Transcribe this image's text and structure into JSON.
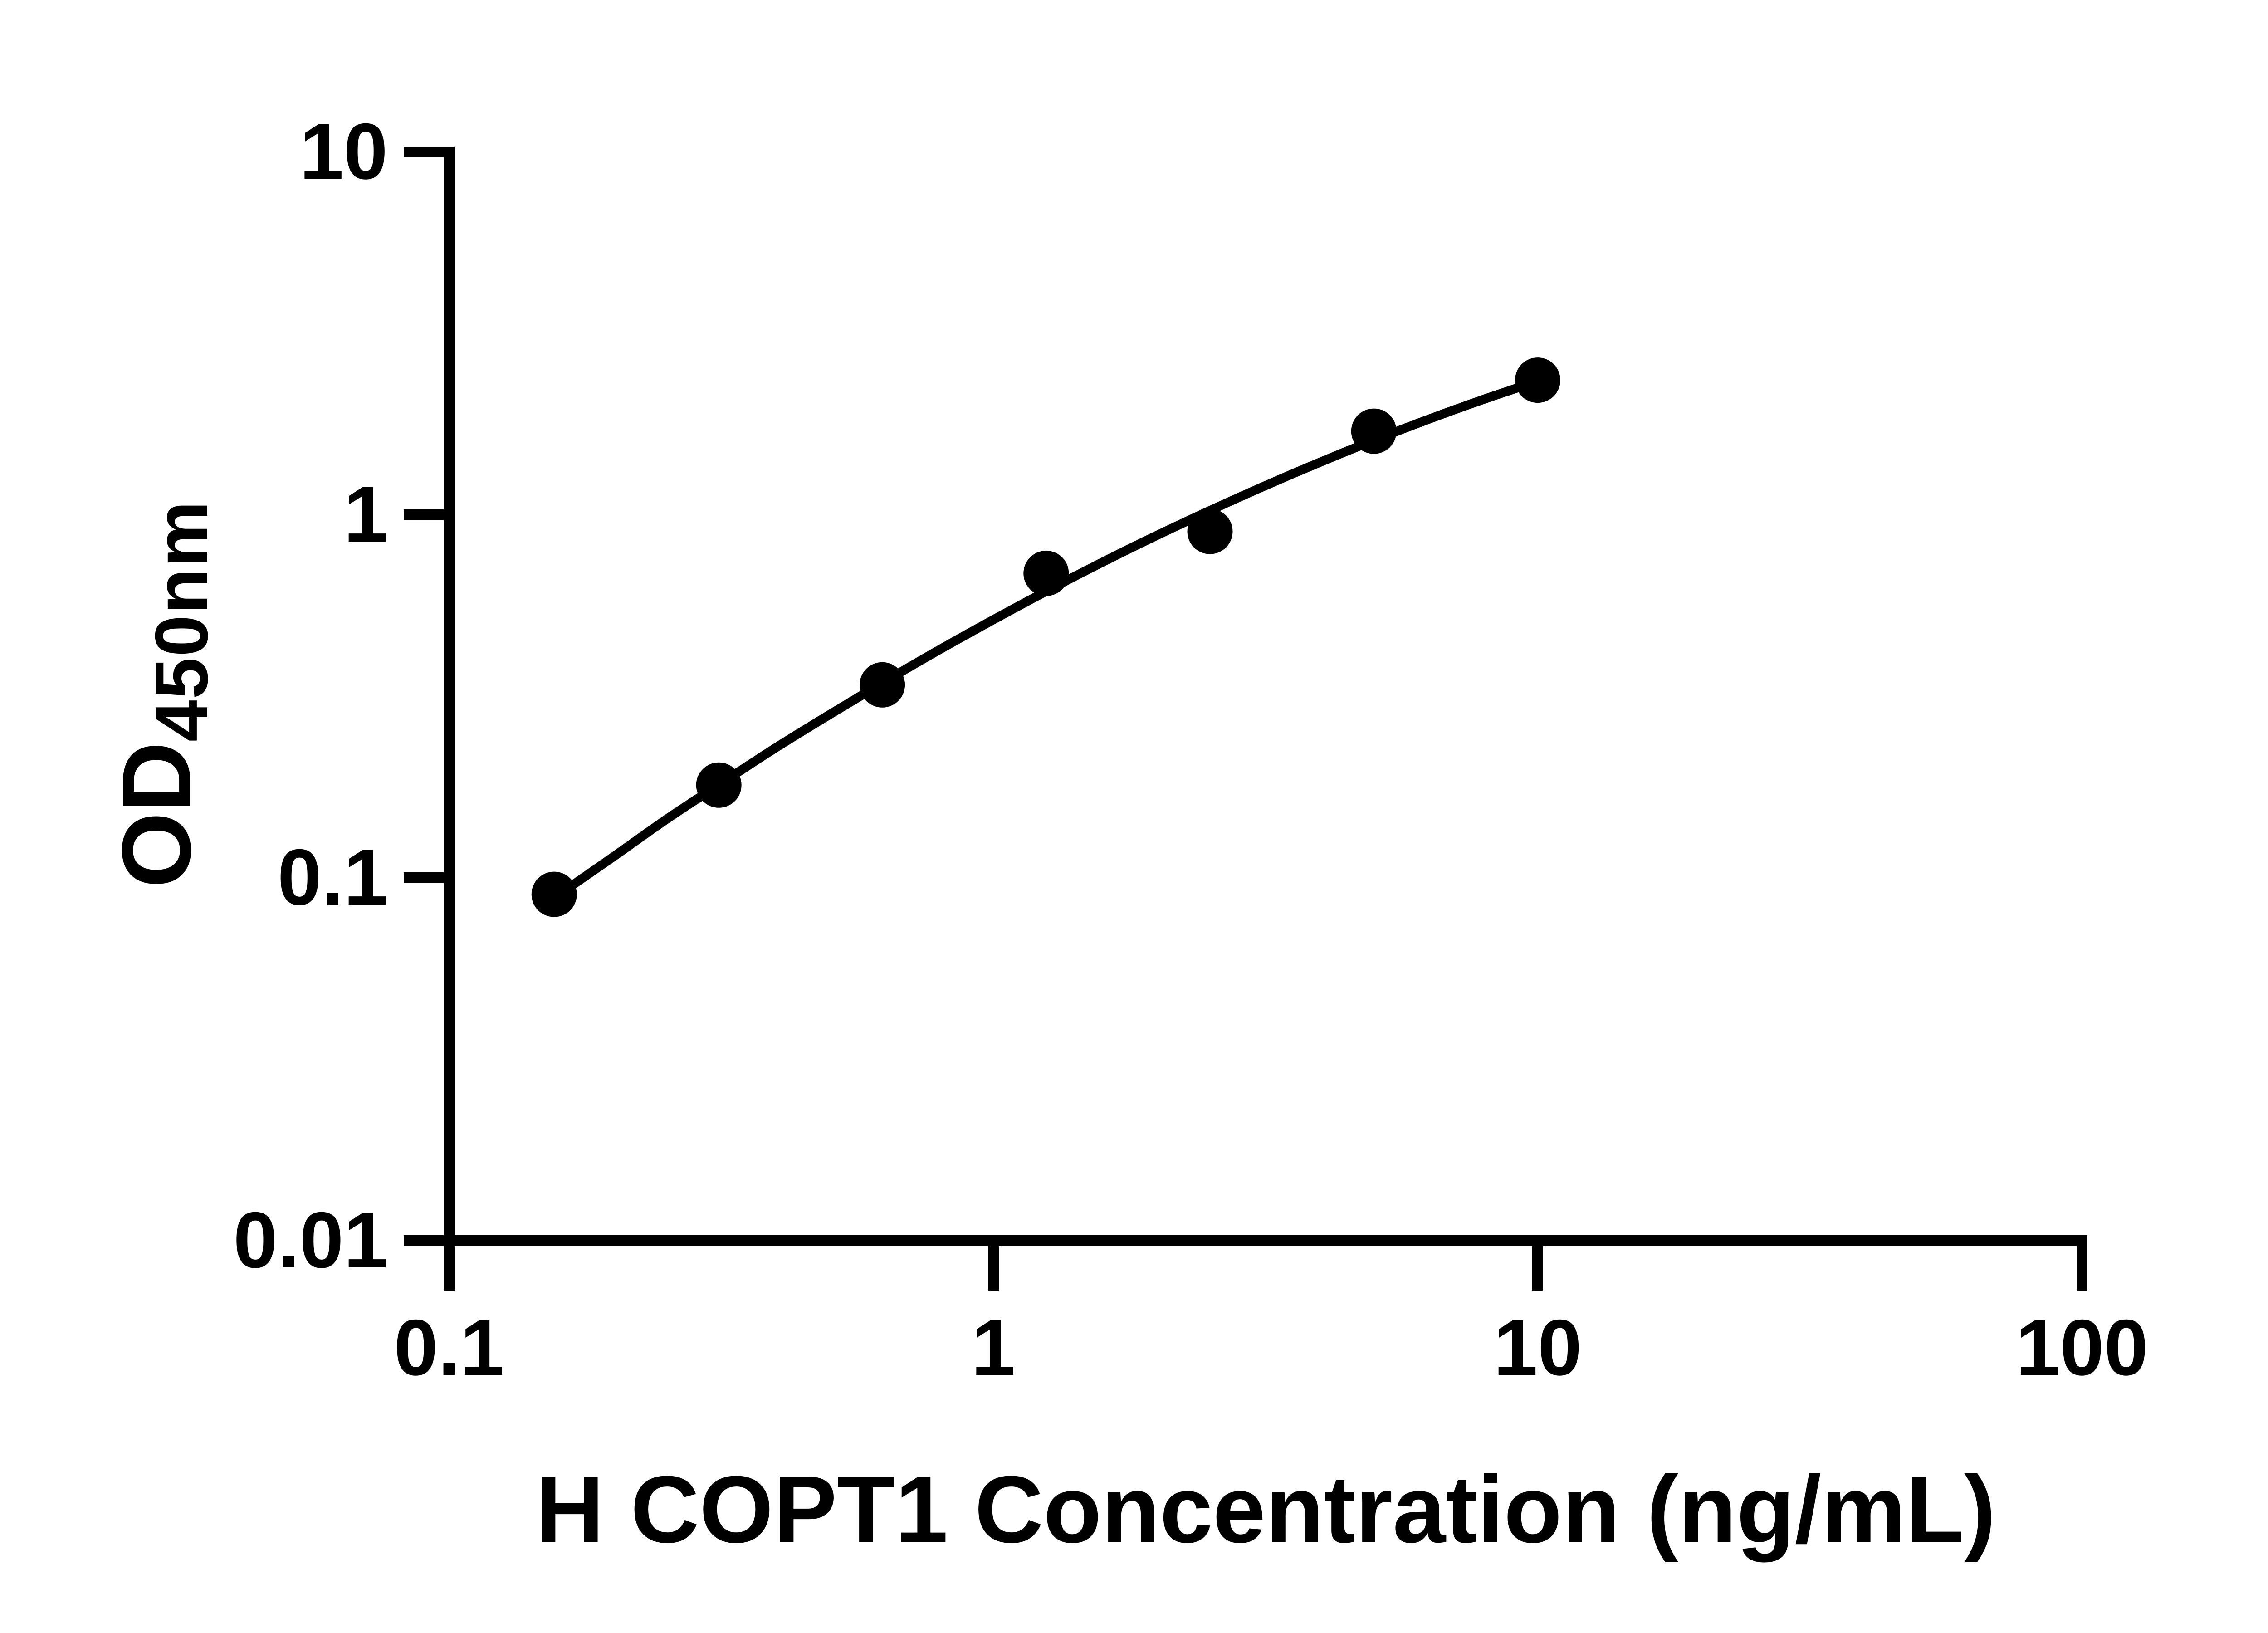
{
  "figure": {
    "background_color": "#ffffff",
    "foreground_color": "#000000"
  },
  "chart_data": {
    "type": "scatter",
    "title": "",
    "xlabel": "H COPT1 Concentration (ng/mL)",
    "ylabel": "OD450nm",
    "ylabel_parts": {
      "main": "OD",
      "subscript": "450nm"
    },
    "x_scale": "log10",
    "y_scale": "log10",
    "xlim": [
      0.1,
      100
    ],
    "ylim": [
      0.01,
      10
    ],
    "grid": false,
    "legend": null,
    "x_ticks": [
      {
        "value": 0.1,
        "label": "0.1"
      },
      {
        "value": 1,
        "label": "1"
      },
      {
        "value": 10,
        "label": "10"
      },
      {
        "value": 100,
        "label": "100"
      }
    ],
    "y_ticks": [
      {
        "value": 10,
        "label": "10"
      },
      {
        "value": 1,
        "label": "1"
      },
      {
        "value": 0.1,
        "label": "0.1"
      },
      {
        "value": 0.01,
        "label": "0.01"
      }
    ],
    "series": [
      {
        "name": "ELISA standard curve data points",
        "marker": "filled-circle",
        "color": "#000000",
        "points": [
          [
            0.156,
            0.09
          ],
          [
            0.313,
            0.18
          ],
          [
            0.625,
            0.34
          ],
          [
            1.25,
            0.69
          ],
          [
            2.5,
            0.9
          ],
          [
            5,
            1.7
          ],
          [
            10,
            2.35
          ]
        ]
      }
    ],
    "fit_curve": {
      "name": "4PL fit line",
      "color": "#000000",
      "points": [
        [
          0.156,
          0.088
        ],
        [
          0.2,
          0.114
        ],
        [
          0.251,
          0.145
        ],
        [
          0.316,
          0.182
        ],
        [
          0.398,
          0.228
        ],
        [
          0.501,
          0.282
        ],
        [
          0.631,
          0.347
        ],
        [
          0.794,
          0.424
        ],
        [
          1.0,
          0.514
        ],
        [
          1.259,
          0.619
        ],
        [
          1.585,
          0.74
        ],
        [
          1.995,
          0.877
        ],
        [
          2.512,
          1.031
        ],
        [
          3.162,
          1.204
        ],
        [
          3.981,
          1.396
        ],
        [
          5.012,
          1.607
        ],
        [
          6.31,
          1.835
        ],
        [
          7.943,
          2.079
        ],
        [
          10.0,
          2.337
        ]
      ]
    }
  }
}
